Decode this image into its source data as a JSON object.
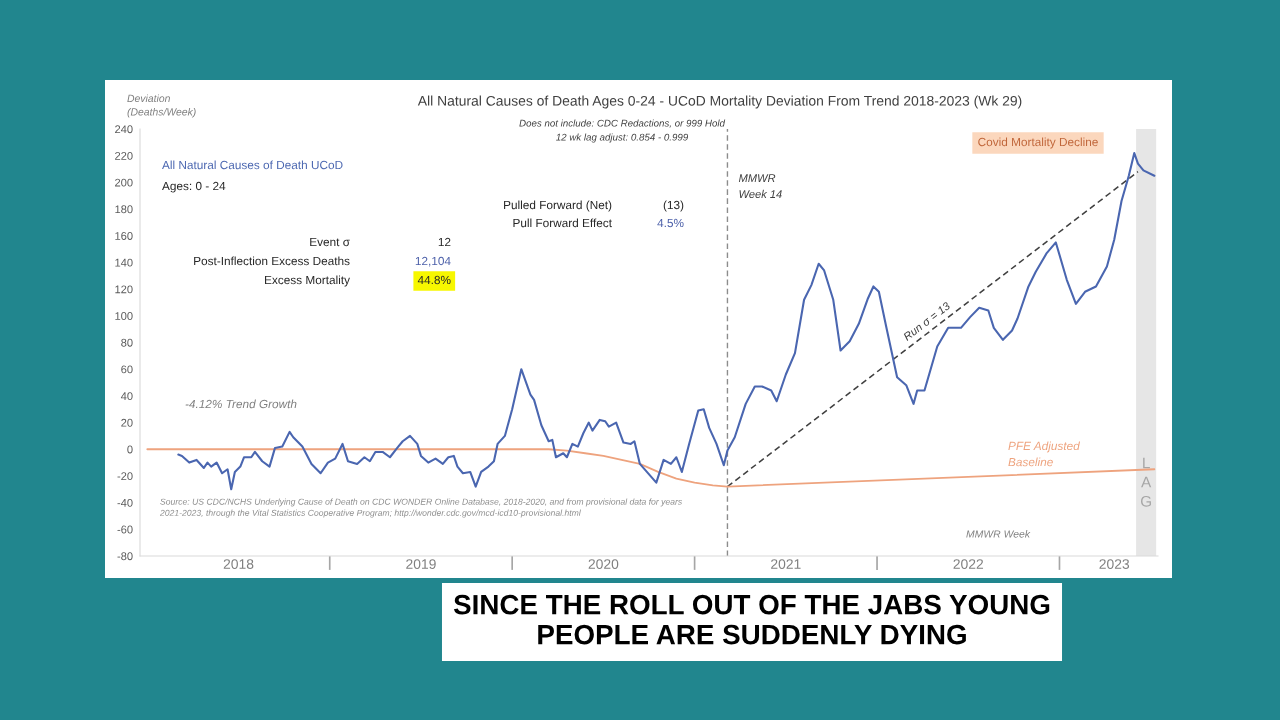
{
  "chart_data": {
    "type": "line",
    "title": "All Natural Causes of Death Ages 0-24 - UCoD Mortality Deviation From Trend 2018-2023 (Wk 29)",
    "subtitle": "Does not include: CDC Redactions, or 999 Hold\n12 wk lag adjust: 0.854 - 0.999",
    "ylabel": "Deviation\n(Deaths/Week)",
    "xlabel": "MMWR Week",
    "annotations": [
      "Ages: 0 - 24",
      "Event σ",
      "12",
      "Post-Inflection Excess Deaths",
      "12,104",
      "Excess Mortality",
      "44.8%",
      "Pulled Forward (Net)",
      "(13)",
      "Pull Forward Effect",
      "4.5%",
      "-4.12% Trend Growth",
      "Covid Mortality Decline",
      "Source: US CDC/NCHS Underlying Cause of Death on CDC WONDER Online Database, 2018-2020, and from provisional data for years\n2021-2023, through the Vital Statistics Cooperative Program; http://wonder.cdc.gov/mcd-icd10-provisional.html",
      "SINCE THE ROLL OUT OF THE JABS YOUNG\nPEOPLE ARE SUDDENLY DYING"
    ],
    "series": [
      {
        "name": "All Natural Causes of Death UCoD",
        "color": "#4a66b0",
        "x": [
          2018.17,
          2018.19,
          2018.23,
          2018.27,
          2018.31,
          2018.33,
          2018.35,
          2018.38,
          2018.41,
          2018.44,
          2018.46,
          2018.48,
          2018.51,
          2018.53,
          2018.57,
          2018.59,
          2018.63,
          2018.67,
          2018.7,
          2018.74,
          2018.78,
          2018.8,
          2018.85,
          2018.9,
          2018.95,
          2018.99,
          2019.03,
          2019.07,
          2019.1,
          2019.15,
          2019.19,
          2019.22,
          2019.25,
          2019.29,
          2019.33,
          2019.37,
          2019.4,
          2019.44,
          2019.48,
          2019.5,
          2019.54,
          2019.58,
          2019.62,
          2019.65,
          2019.68,
          2019.7,
          2019.73,
          2019.77,
          2019.8,
          2019.83,
          2019.87,
          2019.9,
          2019.92,
          2019.96,
          2020.0,
          2020.05,
          2020.1,
          2020.12,
          2020.16,
          2020.2,
          2020.22,
          2020.24,
          2020.28,
          2020.3,
          2020.33,
          2020.36,
          2020.39,
          2020.42,
          2020.44,
          2020.48,
          2020.51,
          2020.53,
          2020.57,
          2020.61,
          2020.65,
          2020.67,
          2020.7,
          2020.79,
          2020.83,
          2020.87,
          2020.9,
          2020.93,
          2020.97,
          2021.02,
          2021.05,
          2021.08,
          2021.12,
          2021.16,
          2021.18,
          2021.22,
          2021.28,
          2021.33,
          2021.37,
          2021.42,
          2021.45,
          2021.5,
          2021.55,
          2021.6,
          2021.64,
          2021.68,
          2021.71,
          2021.76,
          2021.8,
          2021.85,
          2021.9,
          2021.95,
          2021.98,
          2022.01,
          2022.05,
          2022.11,
          2022.16,
          2022.2,
          2022.22,
          2022.26,
          2022.33,
          2022.39,
          2022.46,
          2022.51,
          2022.56,
          2022.61,
          2022.64,
          2022.69,
          2022.74,
          2022.77,
          2022.83,
          2022.87,
          2022.93,
          2022.98,
          2023.04,
          2023.09,
          2023.14,
          2023.2,
          2023.26,
          2023.3,
          2023.34,
          2023.38,
          2023.41,
          2023.43,
          2023.46,
          2023.52
        ],
        "values": [
          -4,
          -5,
          -10,
          -8,
          -14,
          -10,
          -13,
          -10,
          -18,
          -15,
          -30,
          -17,
          -13,
          -6,
          -6,
          -2,
          -9,
          -13,
          1,
          2,
          13,
          9,
          2,
          -11,
          -18,
          -10,
          -7,
          4,
          -9,
          -11,
          -6,
          -9,
          -2,
          -2,
          -6,
          1,
          6,
          10,
          4,
          -5,
          -10,
          -7,
          -11,
          -6,
          -5,
          -13,
          -18,
          -17,
          -28,
          -17,
          -13,
          -9,
          4,
          10,
          30,
          60,
          41,
          37,
          18,
          6,
          7,
          -6,
          -3,
          -6,
          4,
          2,
          12,
          20,
          14,
          22,
          21,
          17,
          20,
          5,
          4,
          6,
          -11,
          -25,
          -8,
          -11,
          -6,
          -17,
          4,
          29,
          30,
          16,
          4,
          -12,
          -1,
          9,
          34,
          47,
          47,
          44,
          36,
          56,
          72,
          112,
          123,
          139,
          134,
          112,
          74,
          81,
          94,
          113,
          122,
          118,
          92,
          54,
          48,
          34,
          44,
          44,
          77,
          91,
          91,
          99,
          106,
          104,
          91,
          82,
          89,
          98,
          122,
          133,
          147,
          155,
          127,
          109,
          118,
          122,
          137,
          157,
          186,
          205,
          222,
          214,
          209,
          205
        ]
      },
      {
        "name": "PFE Adjusted\nBaseline",
        "color": "#eea37e",
        "x": [
          2018.0,
          2020.2,
          2020.3,
          2020.4,
          2020.5,
          2020.6,
          2020.7,
          2020.8,
          2020.9,
          2021.0,
          2021.1,
          2021.18,
          2023.52
        ],
        "values": [
          0,
          0,
          -1,
          -3,
          -5,
          -8,
          -11,
          -17,
          -22,
          -25,
          -27,
          -28,
          -15
        ]
      },
      {
        "name": "Run σ = 13",
        "color": "#404040",
        "line_style": "dashed",
        "x": [
          2021.18,
          2023.43
        ],
        "values": [
          -28,
          208
        ]
      }
    ],
    "xlim": [
      2017.96,
      2023.54
    ],
    "xticks": [
      {
        "value": 2018.5,
        "label": "2018"
      },
      {
        "value": 2019,
        "label": null
      },
      {
        "value": 2019.5,
        "label": "2019"
      },
      {
        "value": 2020,
        "label": null
      },
      {
        "value": 2020.5,
        "label": "2020"
      },
      {
        "value": 2021,
        "label": null
      },
      {
        "value": 2021.5,
        "label": "2021"
      },
      {
        "value": 2022,
        "label": null
      },
      {
        "value": 2022.5,
        "label": "2022"
      },
      {
        "value": 2023,
        "label": null
      },
      {
        "value": 2023.3,
        "label": "2023"
      }
    ],
    "ylim": [
      -80,
      240
    ],
    "yticks": [
      -80,
      -60,
      -40,
      -20,
      0,
      20,
      40,
      60,
      80,
      100,
      120,
      140,
      160,
      180,
      200,
      220,
      240
    ],
    "ref_lines": [
      {
        "axis": "x",
        "value": 2021.18,
        "label": "MMWR\nWeek 14",
        "color": "#8c8c8c",
        "line_style": "dashed"
      }
    ],
    "bands": [
      {
        "axis": "x",
        "from": 2023.42,
        "to": 2023.53,
        "label": "L\nA\nG",
        "color": "#e6e6e6"
      }
    ]
  }
}
